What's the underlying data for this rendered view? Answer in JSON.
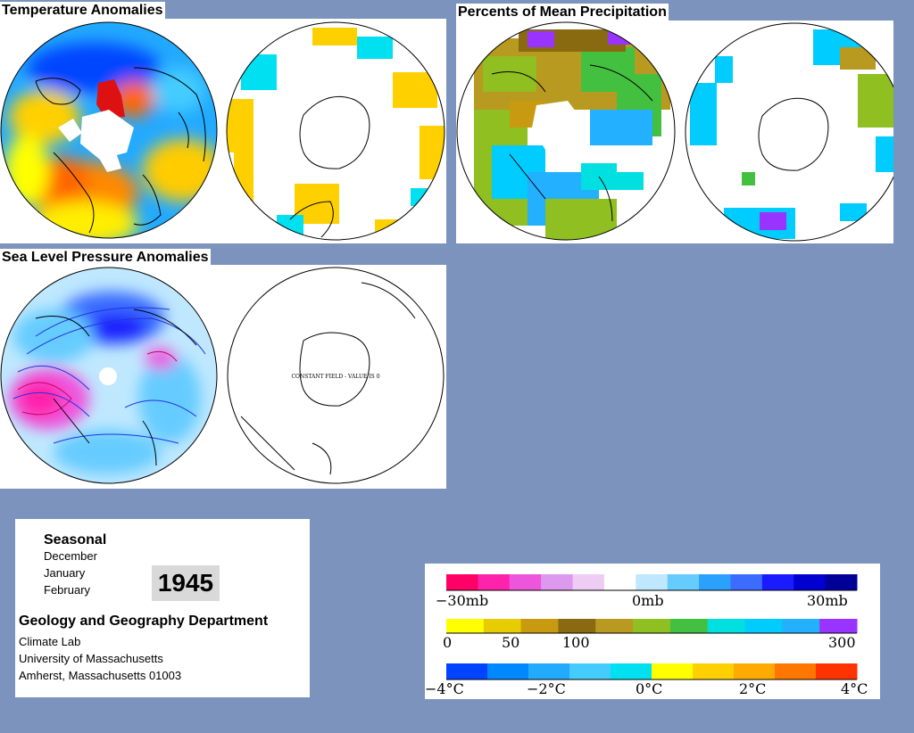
{
  "titles": {
    "temperature": "Temperature Anomalies",
    "precipitation": "Percents of Mean Precipitation",
    "pressure": "Sea Level Pressure Anomalies"
  },
  "slp_southern_note": "CONSTANT FIELD - VALUE IS 0",
  "info": {
    "period_type": "Seasonal",
    "months": [
      "December",
      "January",
      "February"
    ],
    "year": "1945",
    "department": "Geology and Geography Department",
    "address_lines": [
      "Climate Lab",
      "University of Massachusetts",
      "Amherst, Massachusetts 01003"
    ]
  },
  "legends": {
    "pressure": {
      "labels": [
        "−30mb",
        "0mb",
        "30mb"
      ],
      "colors": [
        "#ff0066",
        "#ff22aa",
        "#ee55dd",
        "#dd99ee",
        "#eeccf4",
        "#ffffff",
        "#bfe8ff",
        "#66ccff",
        "#2aa0ff",
        "#3b6cff",
        "#1b1bff",
        "#0000d0",
        "#000099"
      ]
    },
    "precipitation": {
      "labels": [
        "0",
        "50",
        "100",
        "300"
      ],
      "colors": [
        "#ffff00",
        "#e6cc00",
        "#c89a10",
        "#8a6a10",
        "#b89a20",
        "#8fbf20",
        "#44c040",
        "#00e0e0",
        "#00ccff",
        "#22b0ff",
        "#9933ff"
      ]
    },
    "temperature": {
      "labels": [
        "−4°C",
        "−2°C",
        "0°C",
        "2°C",
        "4°C"
      ],
      "colors": [
        "#0044ff",
        "#0088ff",
        "#22aaff",
        "#44ccff",
        "#00e0f0",
        "#ffff00",
        "#ffd000",
        "#ffaa00",
        "#ff7700",
        "#ff3300"
      ]
    }
  }
}
